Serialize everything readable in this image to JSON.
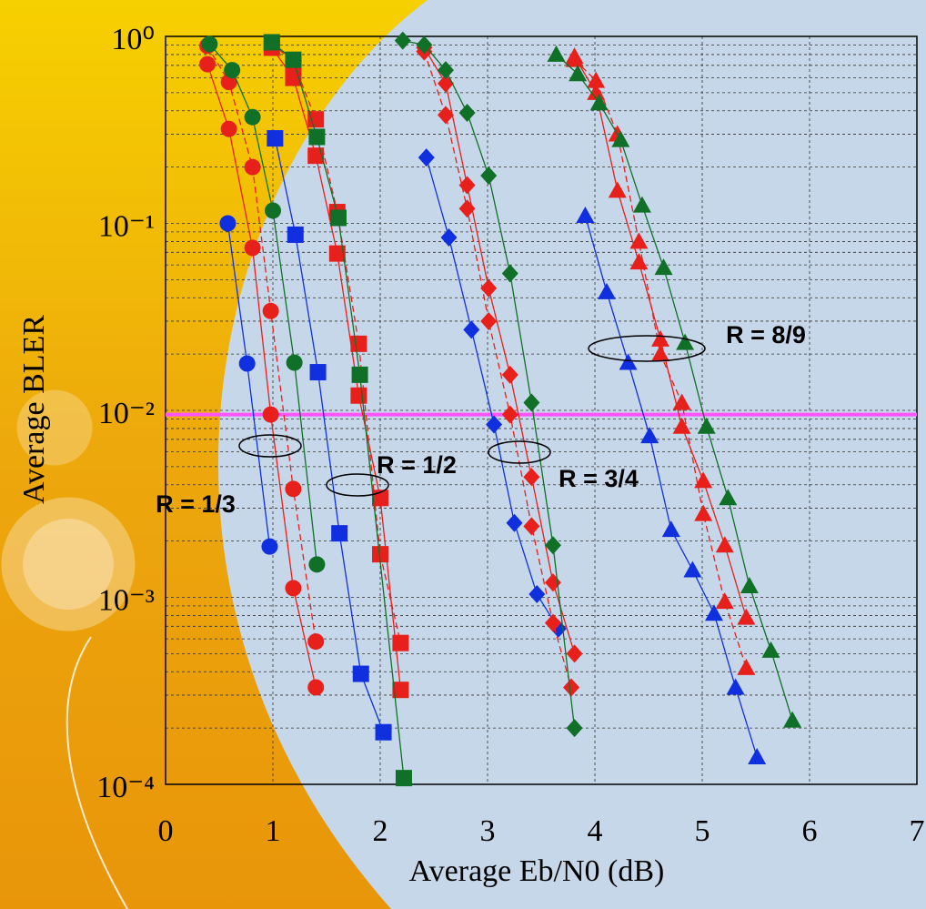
{
  "chart_data": {
    "type": "line",
    "y_label": "Average BLER",
    "x_label": "Average Eb/N0 (dB)",
    "xlim": [
      0,
      7
    ],
    "xticks": [
      0,
      1,
      2,
      3,
      4,
      5,
      6,
      7
    ],
    "ylim": [
      0.0001,
      1
    ],
    "log_y": true,
    "grid": true,
    "yticks": [
      {
        "value": 1,
        "label": "10⁰"
      },
      {
        "value": 0.1,
        "label": "10⁻¹"
      },
      {
        "value": 0.01,
        "label": "10⁻²"
      },
      {
        "value": 0.001,
        "label": "10⁻³"
      },
      {
        "value": 0.0001,
        "label": "10⁻⁴"
      }
    ],
    "reference_line": {
      "value": 0.0095,
      "color": "#ff55ff"
    },
    "annotations": [
      "R = 1/3",
      "R = 1/2",
      "R = 3/4",
      "R = 8/9"
    ],
    "series": [
      {
        "color": "#1030e0",
        "marker": "circle",
        "x": [
          0.58,
          0.76,
          0.97
        ],
        "values": [
          0.1,
          0.0178,
          0.00187
        ]
      },
      {
        "color": "#e8201c",
        "marker": "circle",
        "x": [
          0.39,
          0.59,
          0.81,
          0.98,
          1.19,
          1.4
        ],
        "values": [
          0.71,
          0.32,
          0.074,
          0.0095,
          0.00112,
          0.00033
        ]
      },
      {
        "color": "#e8201c",
        "marker": "circle",
        "line_style": "dashed",
        "x": [
          0.39,
          0.59,
          0.81,
          0.98,
          1.19,
          1.4
        ],
        "values": [
          0.89,
          0.57,
          0.2,
          0.034,
          0.0038,
          0.00058
        ]
      },
      {
        "color": "#107028",
        "marker": "circle",
        "x": [
          0.41,
          0.62,
          0.81,
          1.0,
          1.2,
          1.41
        ],
        "values": [
          0.91,
          0.66,
          0.37,
          0.117,
          0.018,
          0.0015
        ]
      },
      {
        "color": "#1030e0",
        "marker": "square",
        "x": [
          1.02,
          1.21,
          1.42,
          1.62,
          1.82,
          2.03
        ],
        "values": [
          0.285,
          0.087,
          0.016,
          0.0022,
          0.00039,
          0.00019
        ]
      },
      {
        "color": "#e8201c",
        "marker": "square",
        "x": [
          0.99,
          1.19,
          1.4,
          1.6,
          1.8,
          2.0,
          2.19
        ],
        "values": [
          0.87,
          0.6,
          0.23,
          0.069,
          0.012,
          0.0034,
          0.00032
        ]
      },
      {
        "color": "#e8201c",
        "marker": "square",
        "line_style": "dashed",
        "x": [
          0.99,
          1.19,
          1.4,
          1.6,
          1.8,
          2.0,
          2.19
        ],
        "values": [
          0.92,
          0.73,
          0.36,
          0.115,
          0.0227,
          0.0017,
          0.00057
        ]
      },
      {
        "color": "#107028",
        "marker": "square",
        "x": [
          0.99,
          1.19,
          1.41,
          1.61,
          1.81,
          2.22
        ],
        "values": [
          0.93,
          0.75,
          0.29,
          0.107,
          0.0155,
          0.000108
        ]
      },
      {
        "color": "#1030e0",
        "marker": "diamond",
        "x": [
          2.43,
          2.64,
          2.85,
          3.06,
          3.25,
          3.46,
          3.66
        ],
        "values": [
          0.225,
          0.084,
          0.027,
          0.0084,
          0.0025,
          0.00104,
          0.00068
        ]
      },
      {
        "color": "#e8201c",
        "marker": "diamond",
        "x": [
          2.41,
          2.61,
          2.81,
          3.01,
          3.21,
          3.41,
          3.61,
          3.81
        ],
        "values": [
          0.87,
          0.56,
          0.16,
          0.045,
          0.0155,
          0.0044,
          0.0012,
          0.0005
        ]
      },
      {
        "color": "#e8201c",
        "marker": "diamond",
        "line_style": "dashed",
        "x": [
          2.41,
          2.61,
          2.81,
          3.01,
          3.21,
          3.41,
          3.61,
          3.78
        ],
        "values": [
          0.83,
          0.38,
          0.12,
          0.03,
          0.0095,
          0.0024,
          0.00073,
          0.00033
        ]
      },
      {
        "color": "#107028",
        "marker": "diamond",
        "x": [
          2.21,
          2.41,
          2.61,
          2.81,
          3.01,
          3.21,
          3.41,
          3.61,
          3.81
        ],
        "values": [
          0.95,
          0.9,
          0.66,
          0.39,
          0.18,
          0.054,
          0.011,
          0.0019,
          0.0002
        ]
      },
      {
        "color": "#1030e0",
        "marker": "triangle",
        "x": [
          3.91,
          4.11,
          4.31,
          4.51,
          4.71,
          4.91,
          5.11,
          5.31,
          5.51
        ],
        "values": [
          0.11,
          0.043,
          0.018,
          0.0073,
          0.0023,
          0.0014,
          0.00082,
          0.00033,
          0.00014
        ]
      },
      {
        "color": "#e8201c",
        "marker": "triangle",
        "x": [
          3.81,
          4.01,
          4.21,
          4.41,
          4.61,
          4.81,
          5.01,
          5.21,
          5.41
        ],
        "values": [
          0.78,
          0.5,
          0.15,
          0.062,
          0.024,
          0.0082,
          0.0042,
          0.0019,
          0.00078
        ]
      },
      {
        "color": "#e8201c",
        "marker": "triangle",
        "line_style": "dashed",
        "x": [
          3.81,
          4.01,
          4.21,
          4.41,
          4.61,
          4.81,
          5.01,
          5.21,
          5.41
        ],
        "values": [
          0.75,
          0.58,
          0.3,
          0.08,
          0.02,
          0.011,
          0.0028,
          0.00095,
          0.00042
        ]
      },
      {
        "color": "#107028",
        "marker": "triangle",
        "x": [
          3.64,
          3.84,
          4.04,
          4.24,
          4.44,
          4.64,
          4.84,
          5.04,
          5.24,
          5.44,
          5.64,
          5.84
        ],
        "values": [
          0.8,
          0.63,
          0.44,
          0.28,
          0.125,
          0.058,
          0.023,
          0.0082,
          0.0034,
          0.00115,
          0.00052,
          0.00022
        ]
      }
    ]
  }
}
